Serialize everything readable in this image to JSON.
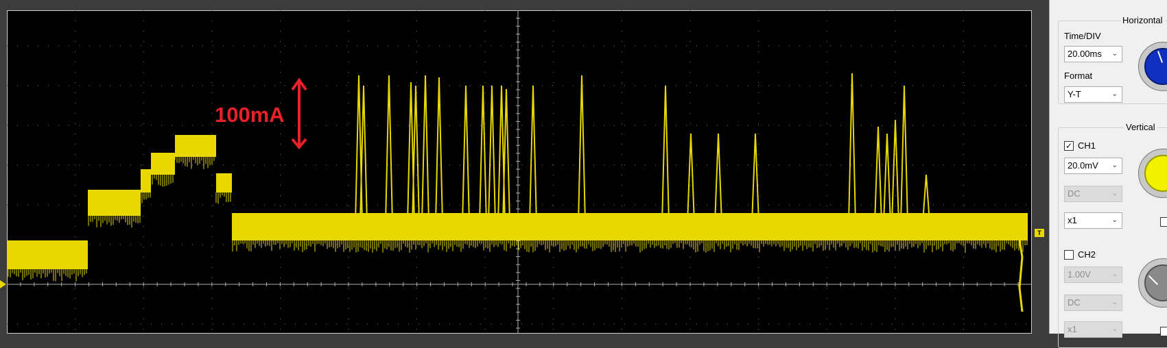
{
  "annotation": {
    "text": "100mA"
  },
  "trigger_marker": {
    "text": "T"
  },
  "horizontal": {
    "title": "Horizontal",
    "time_div_label": "Time/DIV",
    "time_div_value": "20.00ms",
    "format_label": "Format",
    "format_value": "Y-T",
    "knob_icon": "knob-icon"
  },
  "vertical": {
    "title": "Vertical",
    "ch1": {
      "label": "CH1",
      "checked": true,
      "volts_div": "20.0mV",
      "coupling": "DC",
      "probe": "x1",
      "knob_color": "#f2f200"
    },
    "ch2": {
      "label": "CH2",
      "checked": false,
      "volts_div": "1.00V",
      "coupling": "DC",
      "probe": "x1",
      "knob_color": "#8a8a8a"
    }
  },
  "colors": {
    "trace": "#e8d800",
    "screen": "#000000",
    "grid": "#7a7a7a",
    "annotation": "#e8202a",
    "horizontal_knob": "#1030c0"
  }
}
